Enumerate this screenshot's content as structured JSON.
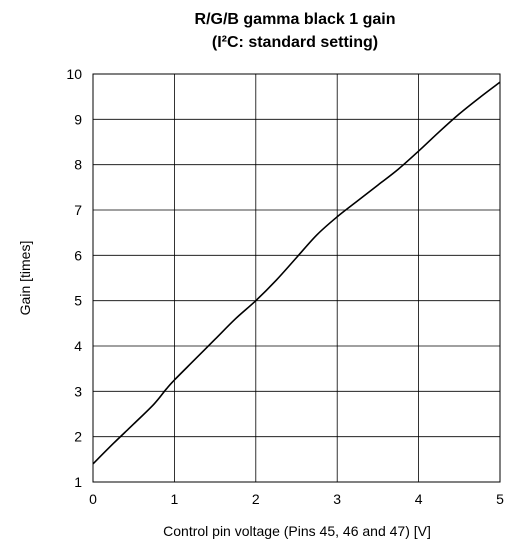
{
  "chart_data": {
    "type": "line",
    "title_line1": "R/G/B gamma black 1 gain",
    "title_line2": "(I²C: standard setting)",
    "xlabel": "Control pin voltage (Pins 45, 46 and 47) [V]",
    "ylabel": "Gain [times]",
    "xlim": [
      0,
      5
    ],
    "ylim": [
      1,
      10
    ],
    "x_ticks": [
      0,
      1,
      2,
      3,
      4,
      5
    ],
    "y_ticks": [
      1,
      2,
      3,
      4,
      5,
      6,
      7,
      8,
      9,
      10
    ],
    "grid": true,
    "x": [
      0,
      0.25,
      0.5,
      0.75,
      0.9,
      1.0,
      1.25,
      1.5,
      1.75,
      2.0,
      2.25,
      2.5,
      2.75,
      3.0,
      3.25,
      3.5,
      3.75,
      4.0,
      4.25,
      4.5,
      4.75,
      5.0
    ],
    "y": [
      1.4,
      1.85,
      2.28,
      2.72,
      3.05,
      3.25,
      3.7,
      4.15,
      4.6,
      5.0,
      5.45,
      5.95,
      6.45,
      6.85,
      7.2,
      7.55,
      7.9,
      8.3,
      8.72,
      9.12,
      9.48,
      9.82
    ]
  }
}
